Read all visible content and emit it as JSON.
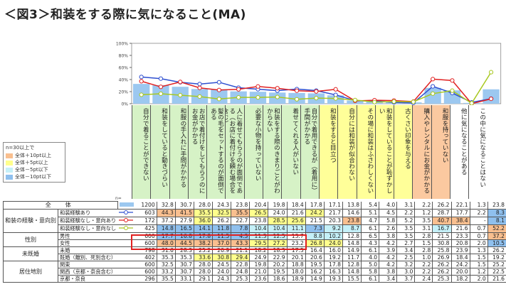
{
  "title": "＜図3＞和装をする際に気になること(MA)",
  "legend": {
    "title": "n=30以上で",
    "items": [
      {
        "label": "全体＋10pt以上",
        "color": "#f9bf8f"
      },
      {
        "label": "全体＋5pt以上",
        "color": "#ffff8c"
      },
      {
        "label": "全体－5pt以下",
        "color": "#c5f0f8"
      },
      {
        "label": "全体－10pt以下",
        "color": "#8fc0ee"
      }
    ]
  },
  "n_header": "n=",
  "colors": {
    "bar": "#9cc8f0",
    "series1": "#2f4fd0",
    "series2": "#e02020",
    "series3": "#a8c820",
    "head_green": "#d6f2c6",
    "head_yellow": "#ffff99",
    "head_orange": "#fbc9a0",
    "head_white": "#ffffff"
  },
  "chart_data": {
    "type": "bar+line",
    "yticks": [
      "0%",
      "20%",
      "40%",
      "60%",
      "80%",
      "100%"
    ],
    "ylim": [
      0,
      100
    ],
    "grid": false,
    "categories": [
      "自分で着ることができない",
      "和装をしていると動きづらい",
      "和服の手入れに手間がかかる",
      "お店で着付けをしてもらうのにお金がかかる",
      "髪の毛をセットするのが面倒である",
      "人に着せてもらうのが面倒である（お店に着付けを頼む場合を含む）",
      "必要な小物を持っていない",
      "和装をする際のきまりごとがわからない",
      "着せてくれる人がいない",
      "自分で着用できるが（着用に）手間がかかる",
      "和装をすると目立つ",
      "自分には和装が似合わない",
      "その場に和装はふさわしくない",
      "和装をしていることが恥ずかしい",
      "古くさい印象を与える",
      "購入やレンタルにお金がかかる",
      "和服を持っていない",
      "他に気になることがある",
      "この中に気になることはない"
    ],
    "category_groups": [
      "green",
      "green",
      "green",
      "green",
      "green",
      "green",
      "green",
      "green",
      "green",
      "green",
      "yellow",
      "yellow",
      "yellow",
      "yellow",
      "yellow",
      "orange",
      "orange",
      "white",
      "white"
    ],
    "bars_series": 0,
    "line_series": [
      1,
      2,
      3
    ]
  },
  "table": {
    "total_label": "全　体",
    "groups": [
      {
        "label": "和装の経験・意向別",
        "rows": [
          1,
          2,
          3
        ]
      },
      {
        "label": "性別",
        "rows": [
          4,
          5
        ]
      },
      {
        "label": "未既婚",
        "rows": [
          6,
          7
        ]
      },
      {
        "label": "居住地別",
        "rows": [
          8,
          9,
          10
        ]
      }
    ],
    "rows": [
      {
        "label": "全体",
        "n": 1200,
        "values": [
          32.8,
          30.7,
          28.0,
          24.3,
          23.8,
          20.4,
          19.8,
          18.4,
          17.8,
          17.1,
          13.8,
          5.4,
          4.0,
          3.1,
          2.2,
          26.2,
          22.1,
          1.3,
          23.8
        ]
      },
      {
        "label": "和装経験あり",
        "n": 603,
        "values": [
          44.3,
          41.5,
          35.5,
          32.5,
          35.5,
          26.5,
          24.0,
          21.6,
          24.2,
          21.7,
          14.6,
          5.1,
          4.5,
          2.2,
          1.2,
          28.7,
          17.7,
          2.2,
          8.3
        ]
      },
      {
        "label": "和装経験なし・意向あり",
        "n": 172,
        "values": [
          37.2,
          27.9,
          36.0,
          26.2,
          22.7,
          23.8,
          28.5,
          25.6,
          21.5,
          20.3,
          23.8,
          4.7,
          5.8,
          5.2,
          3.5,
          40.7,
          38.4,
          "-",
          8.1
        ]
      },
      {
        "label": "和装経験なし・意向なし",
        "n": 425,
        "values": [
          14.8,
          16.5,
          14.1,
          11.8,
          7.8,
          10.4,
          10.4,
          11.1,
          7.3,
          9.2,
          8.7,
          6.1,
          2.6,
          3.5,
          3.1,
          16.7,
          21.6,
          0.7,
          52.2
        ]
      },
      {
        "label": "男性",
        "n": 600,
        "values": [
          17.7,
          16.8,
          17.8,
          11.5,
          4.3,
          11.3,
          12.5,
          13.7,
          8.8,
          10.2,
          12.8,
          6.5,
          3.8,
          3.5,
          2.8,
          21.5,
          23.3,
          0.7,
          37.2
        ]
      },
      {
        "label": "女性",
        "n": 600,
        "values": [
          48.0,
          44.5,
          38.2,
          37.0,
          43.3,
          29.5,
          27.2,
          23.2,
          26.8,
          24.0,
          14.8,
          4.3,
          4.2,
          2.7,
          1.5,
          30.8,
          20.8,
          2.0,
          10.5
        ]
      },
      {
        "label": "未婚",
        "n": 798,
        "values": [
          31.6,
          28.3,
          25.2,
          20.9,
          21.1,
          18.2,
          18.3,
          17.5,
          16.4,
          16.0,
          14.9,
          6.1,
          3.9,
          3.4,
          2.8,
          25.8,
          23.9,
          1.3,
          26.2
        ]
      },
      {
        "label": "既婚（離別、死別含む）",
        "n": 402,
        "values": [
          35.3,
          35.3,
          33.6,
          30.8,
          29.4,
          24.9,
          22.9,
          20.1,
          20.6,
          19.2,
          11.7,
          4.0,
          4.2,
          2.5,
          1.0,
          26.9,
          18.4,
          1.5,
          19.2
        ]
      },
      {
        "label": "関東",
        "n": 600,
        "values": [
          32.5,
          30.7,
          28.0,
          24.5,
          22.8,
          19.8,
          20.2,
          18.8,
          19.5,
          17.8,
          12.8,
          5.0,
          4.2,
          3.2,
          2.2,
          26.2,
          24.2,
          1.5,
          25.2
        ]
      },
      {
        "label": "関西（京都・奈良含む）",
        "n": 600,
        "values": [
          33.2,
          30.7,
          28.0,
          24.0,
          24.8,
          21.0,
          19.5,
          18.0,
          16.2,
          16.3,
          14.8,
          5.8,
          3.8,
          3.0,
          2.2,
          26.2,
          20.0,
          1.2,
          22.5
        ]
      },
      {
        "label": "京都・奈良",
        "n": 296,
        "values": [
          35.5,
          33.1,
          29.1,
          24.3,
          25.3,
          23.6,
          18.6,
          18.9,
          14.9,
          19.3,
          15.5,
          6.1,
          3.4,
          3.7,
          2.4,
          25.3,
          18.2,
          2.0,
          21.6
        ]
      }
    ]
  }
}
